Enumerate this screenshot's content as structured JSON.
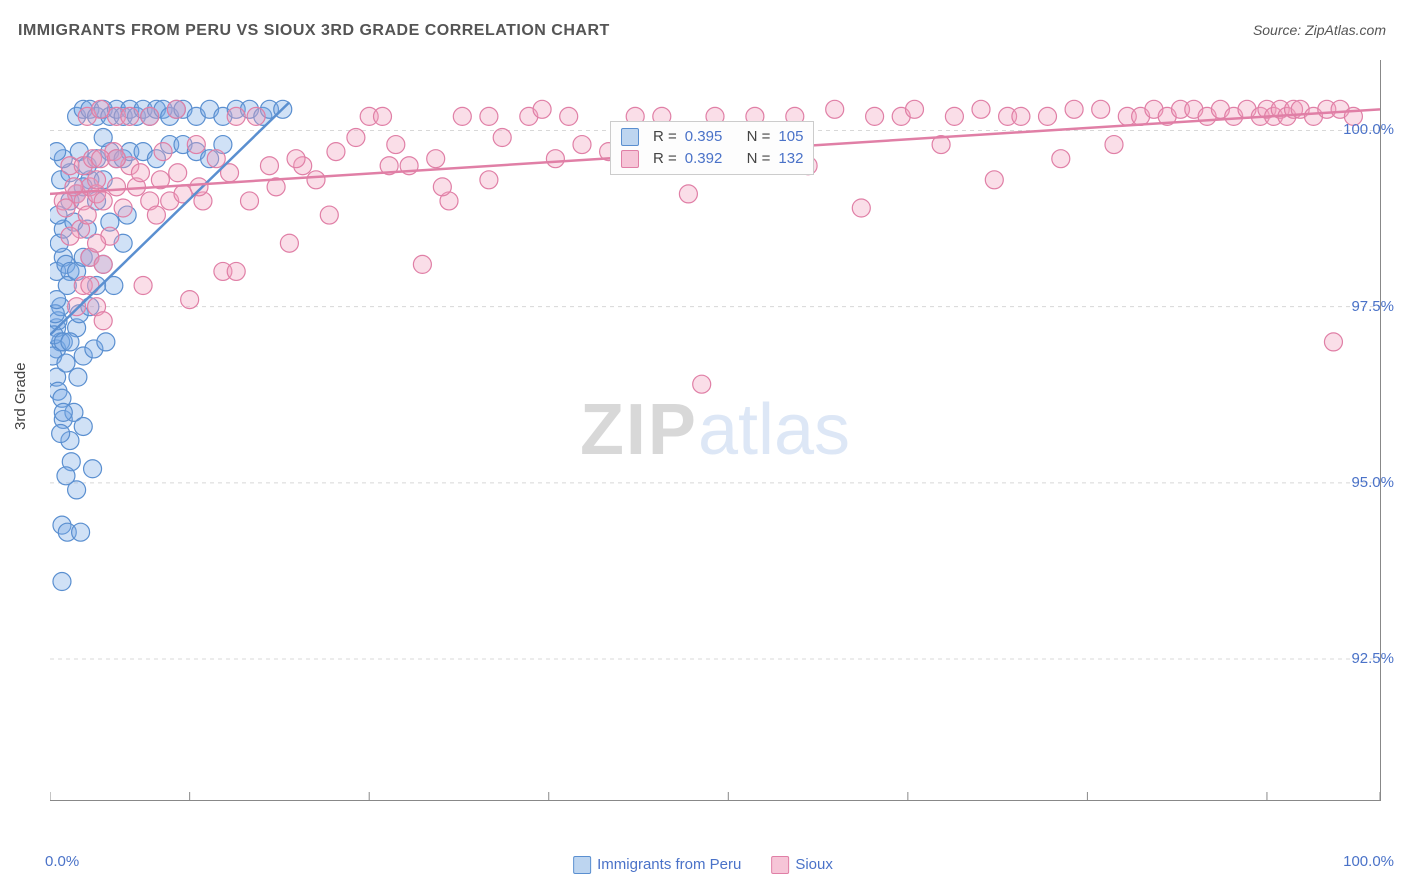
{
  "title": "IMMIGRANTS FROM PERU VS SIOUX 3RD GRADE CORRELATION CHART",
  "source_label": "Source: ",
  "source_name": "ZipAtlas.com",
  "ylabel": "3rd Grade",
  "watermark_bold": "ZIP",
  "watermark_light": "atlas",
  "chart": {
    "type": "scatter",
    "xlim": [
      0,
      100
    ],
    "ylim": [
      90.5,
      101
    ],
    "x_ticks": [
      0,
      100
    ],
    "x_tick_labels": [
      "0.0%",
      "100.0%"
    ],
    "x_minor_ticks": [
      10.5,
      24,
      37.5,
      51,
      64.5,
      78,
      91.5
    ],
    "y_ticks": [
      92.5,
      95.0,
      97.5,
      100.0
    ],
    "y_tick_labels": [
      "92.5%",
      "95.0%",
      "97.5%",
      "100.0%"
    ],
    "background_color": "#ffffff",
    "grid_color": "#d8d8d8",
    "axis_color": "#888888",
    "label_color": "#4a72c8",
    "marker_radius": 9,
    "marker_stroke_width": 1.2,
    "series": [
      {
        "name": "Immigrants from Peru",
        "color_fill": "rgba(120,170,230,0.35)",
        "color_stroke": "#5a8fd0",
        "legend_fill": "#bdd5f0",
        "legend_stroke": "#5a8fd0",
        "R": "0.395",
        "N": "105",
        "trend": {
          "x0": 0,
          "y0": 97.1,
          "x1": 18,
          "y1": 100.4
        },
        "points": [
          [
            0.5,
            97.2
          ],
          [
            0.6,
            97.3
          ],
          [
            0.5,
            96.9
          ],
          [
            0.8,
            97.0
          ],
          [
            0.8,
            97.5
          ],
          [
            0.3,
            97.1
          ],
          [
            0.4,
            97.4
          ],
          [
            1.0,
            97.0
          ],
          [
            0.5,
            96.5
          ],
          [
            0.6,
            96.3
          ],
          [
            0.2,
            96.8
          ],
          [
            1.2,
            96.7
          ],
          [
            0.9,
            96.2
          ],
          [
            1.0,
            95.9
          ],
          [
            1.5,
            95.6
          ],
          [
            0.8,
            95.7
          ],
          [
            2.0,
            97.2
          ],
          [
            2.2,
            97.4
          ],
          [
            2.5,
            96.8
          ],
          [
            2.1,
            96.5
          ],
          [
            1.8,
            96.0
          ],
          [
            1.6,
            95.3
          ],
          [
            1.2,
            95.1
          ],
          [
            2.0,
            94.9
          ],
          [
            0.9,
            94.4
          ],
          [
            1.3,
            94.3
          ],
          [
            2.3,
            94.3
          ],
          [
            0.9,
            93.6
          ],
          [
            1.0,
            98.2
          ],
          [
            0.5,
            98.0
          ],
          [
            0.7,
            98.4
          ],
          [
            1.2,
            98.1
          ],
          [
            1.5,
            98.0
          ],
          [
            1.3,
            97.8
          ],
          [
            2.0,
            98.0
          ],
          [
            2.5,
            98.2
          ],
          [
            1.0,
            98.6
          ],
          [
            0.6,
            98.8
          ],
          [
            1.8,
            98.7
          ],
          [
            1.5,
            99.0
          ],
          [
            2.0,
            99.1
          ],
          [
            2.8,
            98.6
          ],
          [
            3.0,
            99.3
          ],
          [
            3.5,
            99.0
          ],
          [
            2.5,
            99.2
          ],
          [
            0.8,
            99.3
          ],
          [
            1.5,
            99.4
          ],
          [
            1.0,
            99.6
          ],
          [
            2.2,
            99.7
          ],
          [
            2.8,
            99.5
          ],
          [
            0.5,
            99.7
          ],
          [
            3.5,
            99.6
          ],
          [
            4.0,
            99.3
          ],
          [
            4.5,
            99.7
          ],
          [
            4.0,
            99.9
          ],
          [
            2.0,
            100.2
          ],
          [
            2.5,
            100.3
          ],
          [
            3.0,
            100.3
          ],
          [
            3.5,
            100.2
          ],
          [
            4.0,
            100.3
          ],
          [
            4.5,
            100.2
          ],
          [
            5.0,
            100.3
          ],
          [
            5.5,
            100.2
          ],
          [
            6.0,
            100.3
          ],
          [
            6.5,
            100.2
          ],
          [
            7.0,
            100.3
          ],
          [
            7.5,
            100.2
          ],
          [
            8.0,
            100.3
          ],
          [
            8.5,
            100.3
          ],
          [
            9.0,
            100.2
          ],
          [
            9.5,
            100.3
          ],
          [
            10.0,
            100.3
          ],
          [
            11.0,
            100.2
          ],
          [
            12.0,
            100.3
          ],
          [
            13.0,
            100.2
          ],
          [
            14.0,
            100.3
          ],
          [
            15.0,
            100.3
          ],
          [
            16.0,
            100.2
          ],
          [
            16.5,
            100.3
          ],
          [
            17.5,
            100.3
          ],
          [
            5.0,
            99.6
          ],
          [
            5.5,
            99.6
          ],
          [
            6.0,
            99.7
          ],
          [
            7.0,
            99.7
          ],
          [
            8.0,
            99.6
          ],
          [
            9.0,
            99.8
          ],
          [
            10.0,
            99.8
          ],
          [
            11.0,
            99.7
          ],
          [
            12.0,
            99.6
          ],
          [
            13.0,
            99.8
          ],
          [
            3.5,
            97.8
          ],
          [
            3.3,
            96.9
          ],
          [
            4.2,
            97.0
          ],
          [
            3.0,
            97.5
          ],
          [
            4.0,
            98.1
          ],
          [
            4.8,
            97.8
          ],
          [
            5.5,
            98.4
          ],
          [
            5.8,
            98.8
          ],
          [
            4.5,
            98.7
          ],
          [
            3.0,
            98.2
          ],
          [
            0.5,
            97.6
          ],
          [
            1.5,
            97.0
          ],
          [
            1.0,
            96.0
          ],
          [
            2.5,
            95.8
          ],
          [
            3.2,
            95.2
          ]
        ]
      },
      {
        "name": "Sioux",
        "color_fill": "rgba(240,160,190,0.35)",
        "color_stroke": "#e07fa6",
        "legend_fill": "#f6c5d7",
        "legend_stroke": "#e07fa6",
        "R": "0.392",
        "N": "132",
        "trend": {
          "x0": 0,
          "y0": 99.1,
          "x1": 100,
          "y1": 100.3
        },
        "points": [
          [
            2.0,
            99.1
          ],
          [
            2.5,
            99.0
          ],
          [
            3.0,
            99.2
          ],
          [
            3.5,
            99.1
          ],
          [
            2.3,
            98.6
          ],
          [
            2.8,
            98.8
          ],
          [
            3.5,
            99.3
          ],
          [
            4.0,
            99.0
          ],
          [
            5.0,
            99.2
          ],
          [
            5.5,
            98.9
          ],
          [
            4.5,
            98.5
          ],
          [
            3.0,
            98.2
          ],
          [
            3.5,
            98.4
          ],
          [
            4.0,
            98.1
          ],
          [
            2.5,
            97.8
          ],
          [
            3.0,
            97.8
          ],
          [
            2.0,
            97.5
          ],
          [
            3.5,
            97.5
          ],
          [
            4.0,
            97.3
          ],
          [
            7.0,
            97.8
          ],
          [
            10.5,
            97.6
          ],
          [
            13.0,
            98.0
          ],
          [
            14.0,
            98.0
          ],
          [
            15.0,
            99.0
          ],
          [
            17.0,
            99.2
          ],
          [
            18.0,
            98.4
          ],
          [
            19.0,
            99.5
          ],
          [
            20.0,
            99.3
          ],
          [
            21.0,
            98.8
          ],
          [
            23.0,
            99.9
          ],
          [
            24.0,
            100.2
          ],
          [
            25.0,
            100.2
          ],
          [
            26.0,
            99.8
          ],
          [
            27.0,
            99.5
          ],
          [
            28.0,
            98.1
          ],
          [
            29.0,
            99.6
          ],
          [
            30.0,
            99.0
          ],
          [
            31.0,
            100.2
          ],
          [
            33.0,
            100.2
          ],
          [
            34.0,
            99.9
          ],
          [
            36.0,
            100.2
          ],
          [
            37.0,
            100.3
          ],
          [
            38.0,
            99.6
          ],
          [
            39.0,
            100.2
          ],
          [
            40.0,
            99.8
          ],
          [
            42.0,
            99.7
          ],
          [
            44.0,
            100.2
          ],
          [
            46.0,
            100.2
          ],
          [
            48.0,
            99.1
          ],
          [
            49.0,
            96.4
          ],
          [
            50.0,
            100.2
          ],
          [
            51.0,
            99.6
          ],
          [
            53.0,
            100.2
          ],
          [
            54.0,
            99.8
          ],
          [
            56.0,
            100.2
          ],
          [
            57.0,
            99.5
          ],
          [
            59.0,
            100.3
          ],
          [
            61.0,
            98.9
          ],
          [
            62.0,
            100.2
          ],
          [
            64.0,
            100.2
          ],
          [
            65.0,
            100.3
          ],
          [
            67.0,
            99.8
          ],
          [
            68.0,
            100.2
          ],
          [
            70.0,
            100.3
          ],
          [
            71.0,
            99.3
          ],
          [
            72.0,
            100.2
          ],
          [
            73.0,
            100.2
          ],
          [
            75.0,
            100.2
          ],
          [
            76.0,
            99.6
          ],
          [
            77.0,
            100.3
          ],
          [
            79.0,
            100.3
          ],
          [
            80.0,
            99.8
          ],
          [
            81.0,
            100.2
          ],
          [
            82.0,
            100.2
          ],
          [
            83.0,
            100.3
          ],
          [
            84.0,
            100.2
          ],
          [
            85.0,
            100.3
          ],
          [
            86.0,
            100.3
          ],
          [
            87.0,
            100.2
          ],
          [
            88.0,
            100.3
          ],
          [
            89.0,
            100.2
          ],
          [
            90.0,
            100.3
          ],
          [
            91.0,
            100.2
          ],
          [
            91.5,
            100.3
          ],
          [
            92.0,
            100.2
          ],
          [
            92.5,
            100.3
          ],
          [
            93.0,
            100.2
          ],
          [
            93.5,
            100.3
          ],
          [
            94.0,
            100.3
          ],
          [
            95.0,
            100.2
          ],
          [
            96.0,
            100.3
          ],
          [
            97.0,
            100.3
          ],
          [
            98.0,
            100.2
          ],
          [
            96.5,
            97.0
          ],
          [
            5.0,
            100.2
          ],
          [
            6.0,
            100.2
          ],
          [
            7.5,
            100.2
          ],
          [
            8.5,
            99.7
          ],
          [
            9.5,
            100.3
          ],
          [
            11.0,
            99.8
          ],
          [
            12.5,
            99.6
          ],
          [
            14.0,
            100.2
          ],
          [
            15.5,
            100.2
          ],
          [
            6.5,
            99.2
          ],
          [
            7.5,
            99.0
          ],
          [
            8.0,
            98.8
          ],
          [
            9.0,
            99.0
          ],
          [
            10.0,
            99.1
          ],
          [
            11.5,
            99.0
          ],
          [
            1.5,
            99.5
          ],
          [
            1.8,
            99.2
          ],
          [
            1.5,
            98.5
          ],
          [
            2.5,
            99.5
          ],
          [
            1.0,
            99.0
          ],
          [
            1.2,
            98.9
          ],
          [
            3.2,
            99.6
          ],
          [
            4.8,
            99.7
          ],
          [
            6.0,
            99.5
          ],
          [
            3.8,
            99.6
          ],
          [
            2.8,
            100.2
          ],
          [
            3.8,
            100.3
          ],
          [
            5.0,
            99.6
          ],
          [
            6.8,
            99.4
          ],
          [
            8.3,
            99.3
          ],
          [
            9.6,
            99.4
          ],
          [
            11.2,
            99.2
          ],
          [
            13.5,
            99.4
          ],
          [
            16.5,
            99.5
          ],
          [
            18.5,
            99.6
          ],
          [
            21.5,
            99.7
          ],
          [
            25.5,
            99.5
          ],
          [
            29.5,
            99.2
          ],
          [
            33.0,
            99.3
          ]
        ]
      }
    ]
  },
  "bottom_legend": [
    {
      "label": "Immigrants from Peru",
      "fill": "#bdd5f0",
      "stroke": "#5a8fd0"
    },
    {
      "label": "Sioux",
      "fill": "#f6c5d7",
      "stroke": "#e07fa6"
    }
  ]
}
